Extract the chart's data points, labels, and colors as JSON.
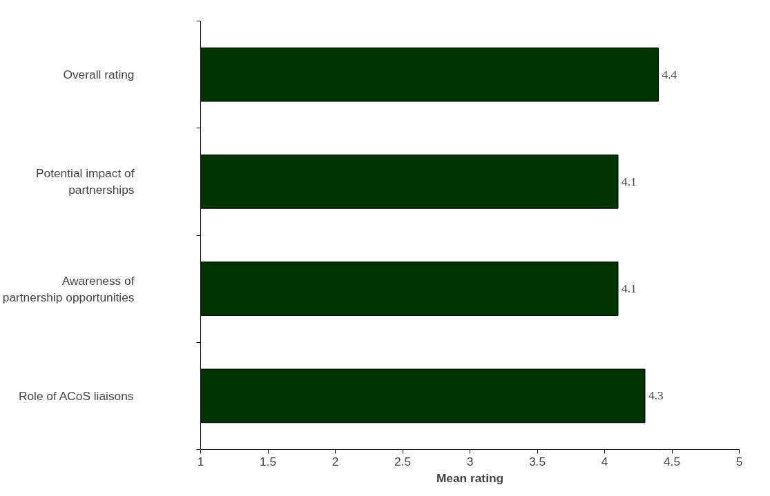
{
  "chart_data": {
    "type": "bar",
    "orientation": "horizontal",
    "xlabel": "Mean rating",
    "categories": [
      "Overall rating",
      "Potential impact of\npartnerships",
      "Awareness of\npartnership opportunities",
      "Role of ACoS liaisons"
    ],
    "values": [
      4.4,
      4.1,
      4.1,
      4.3
    ],
    "color": "#003300",
    "xlim": [
      1,
      5
    ],
    "xticks": [
      1,
      1.5,
      2,
      2.5,
      3,
      3.5,
      4,
      4.5,
      5
    ],
    "grid": false,
    "data_labels": true
  }
}
